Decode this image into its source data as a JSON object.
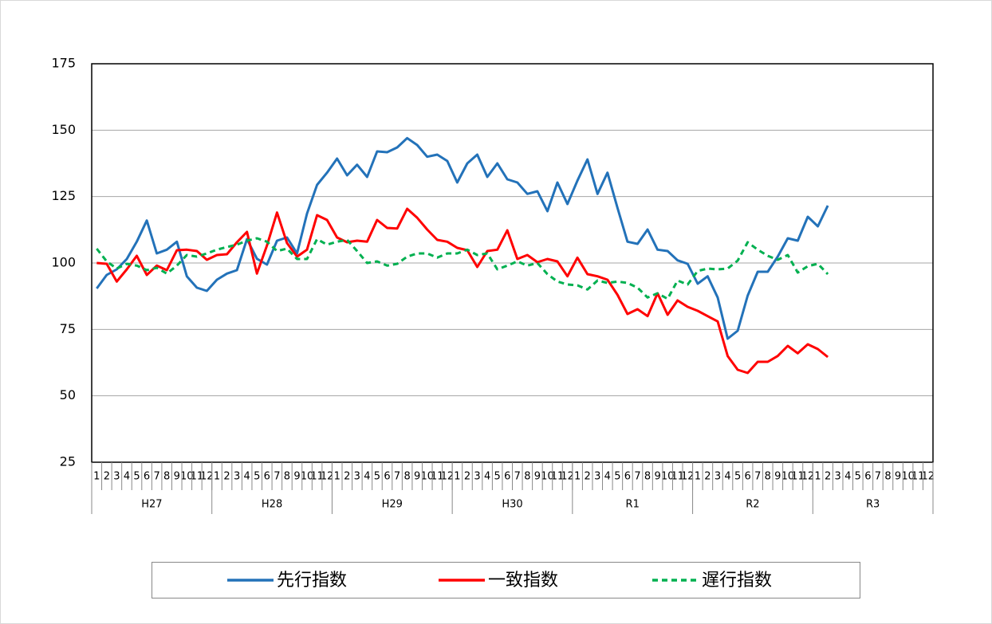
{
  "chart_data": {
    "type": "line",
    "categories": [
      "1",
      "2",
      "3",
      "4",
      "5",
      "6",
      "7",
      "8",
      "9",
      "10",
      "11",
      "12",
      "1",
      "2",
      "3",
      "4",
      "5",
      "6",
      "7",
      "8",
      "9",
      "10",
      "11",
      "12",
      "1",
      "2",
      "3",
      "4",
      "5",
      "6",
      "7",
      "8",
      "9",
      "10",
      "11",
      "12",
      "1",
      "2",
      "3",
      "4",
      "5",
      "6",
      "7",
      "8",
      "9",
      "10",
      "11",
      "12",
      "1",
      "2",
      "3",
      "4",
      "5",
      "6",
      "7",
      "8",
      "9",
      "10",
      "11",
      "12",
      "1",
      "2",
      "3",
      "4",
      "5",
      "6",
      "7",
      "8",
      "9",
      "10",
      "11",
      "12",
      "1",
      "2",
      "3",
      "4",
      "5",
      "6",
      "7",
      "8",
      "9",
      "10",
      "11",
      "12"
    ],
    "groups": [
      "H27",
      "H28",
      "H29",
      "H30",
      "R1",
      "R2",
      "R3"
    ],
    "ylim": [
      25,
      175
    ],
    "yticks": [
      25,
      50,
      75,
      100,
      125,
      150,
      175
    ],
    "grid": true,
    "series": [
      {
        "name": "先行指数",
        "color": "#2372b9",
        "dash": false,
        "values": [
          90.4,
          95.5,
          97.6,
          101.5,
          108,
          116,
          103.6,
          105,
          108,
          95,
          90.7,
          89.5,
          93.7,
          96,
          97.3,
          109,
          101.6,
          99.4,
          108.4,
          109.6,
          103.6,
          118.6,
          129.4,
          134,
          139.3,
          133,
          137,
          132.4,
          142,
          141.7,
          143.5,
          147,
          144.4,
          140,
          140.8,
          138.4,
          130.3,
          137.5,
          140.8,
          132.4,
          137.5,
          131.5,
          130.3,
          126,
          127,
          119.5,
          130.3,
          122.2,
          131,
          139,
          126,
          134,
          120.7,
          108,
          107.2,
          112.6,
          105,
          104.5,
          101,
          99.7,
          92.2,
          95,
          87,
          71.5,
          74.5,
          87.7,
          96.7,
          96.7,
          102.4,
          109.3,
          108.4,
          117.4,
          113.8,
          121.6,
          null,
          null,
          null,
          null,
          null,
          null,
          null,
          null,
          null,
          null
        ]
      },
      {
        "name": "一致指数",
        "color": "#ff0000",
        "dash": false,
        "values": [
          100,
          99.7,
          93,
          97.6,
          102.7,
          95.5,
          99,
          97.3,
          104.8,
          105,
          104.5,
          101.2,
          103,
          103.3,
          107.8,
          111.7,
          96,
          106.6,
          119,
          107.5,
          102.4,
          105,
          118,
          116.2,
          109.6,
          107.8,
          108.4,
          108,
          116.2,
          113.2,
          113,
          120.4,
          117,
          112.6,
          108.7,
          108,
          105.7,
          104.8,
          98.5,
          104.5,
          105,
          112.3,
          101.5,
          103,
          100.3,
          101.5,
          100.6,
          95,
          102,
          95.8,
          95,
          93.7,
          88,
          80.8,
          82.6,
          80,
          88.6,
          80.5,
          85.9,
          83.5,
          82,
          80,
          78,
          65,
          59.8,
          58.6,
          62.8,
          62.8,
          65,
          68.8,
          66,
          69.4,
          67.6,
          64.6,
          null,
          null,
          null,
          null,
          null,
          null,
          null,
          null,
          null,
          null
        ]
      },
      {
        "name": "遅行指数",
        "color": "#00b050",
        "dash": true,
        "values": [
          105.4,
          100.6,
          97.9,
          99.7,
          99,
          97.3,
          98.2,
          96,
          99,
          103,
          102.4,
          103.6,
          105,
          106,
          106.9,
          108.4,
          109.3,
          108,
          104.5,
          105.4,
          101.5,
          101.5,
          109,
          106.9,
          108,
          108.7,
          104.5,
          100,
          100.6,
          99,
          99.7,
          102.4,
          103.6,
          103.6,
          102,
          103.6,
          103.6,
          105,
          103,
          103.6,
          97.6,
          99,
          100.6,
          99,
          100,
          95.8,
          93,
          91.9,
          91.6,
          90,
          93.4,
          92.5,
          93,
          92.5,
          90.7,
          87,
          88.6,
          86.5,
          93.4,
          91.9,
          97,
          97.9,
          97.6,
          97.9,
          100.9,
          107.8,
          105,
          102.7,
          101.2,
          103,
          96.4,
          98.8,
          99.7,
          95.8,
          null,
          null,
          null,
          null,
          null,
          null,
          null,
          null,
          null,
          null
        ]
      }
    ]
  }
}
